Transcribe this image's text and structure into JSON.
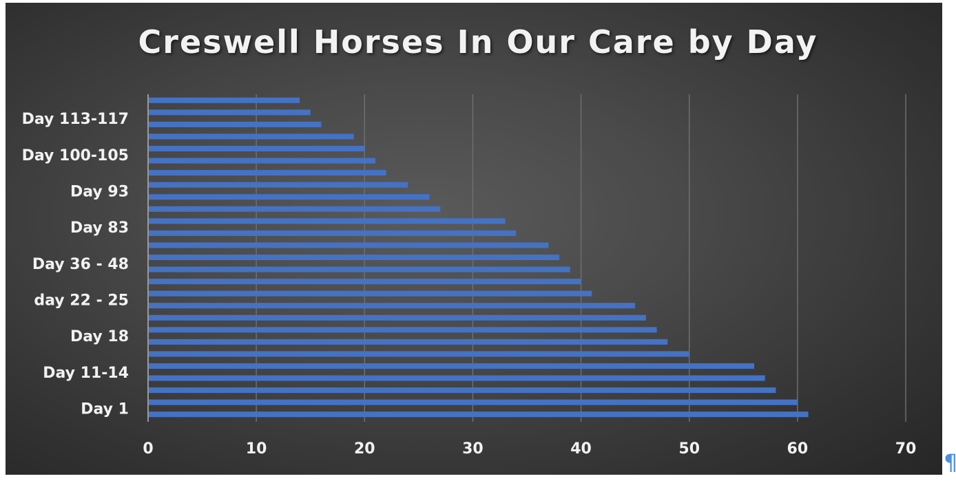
{
  "chart_data": {
    "type": "bar",
    "orientation": "horizontal",
    "title": "Creswell Horses In Our Care by Day",
    "xlabel": "",
    "ylabel": "",
    "xlim": [
      0,
      70
    ],
    "x_ticks": [
      0,
      10,
      20,
      30,
      40,
      50,
      60,
      70
    ],
    "grid": "vertical",
    "legend": "none",
    "bar_color": "#4472C4",
    "shown_category_labels": [
      "Day 1",
      "Day 11-14",
      "Day 18",
      "day 22 - 25",
      "Day 36 - 48",
      "Day 83",
      "Day 93",
      "Day 100-105",
      "Day 113-117"
    ],
    "label_every": 3,
    "values": [
      61,
      60,
      58,
      57,
      56,
      50,
      48,
      47,
      46,
      45,
      41,
      40,
      39,
      38,
      37,
      34,
      33,
      27,
      26,
      24,
      22,
      21,
      20,
      19,
      16,
      15,
      14
    ]
  },
  "decor": {
    "pilcrow": "¶"
  }
}
